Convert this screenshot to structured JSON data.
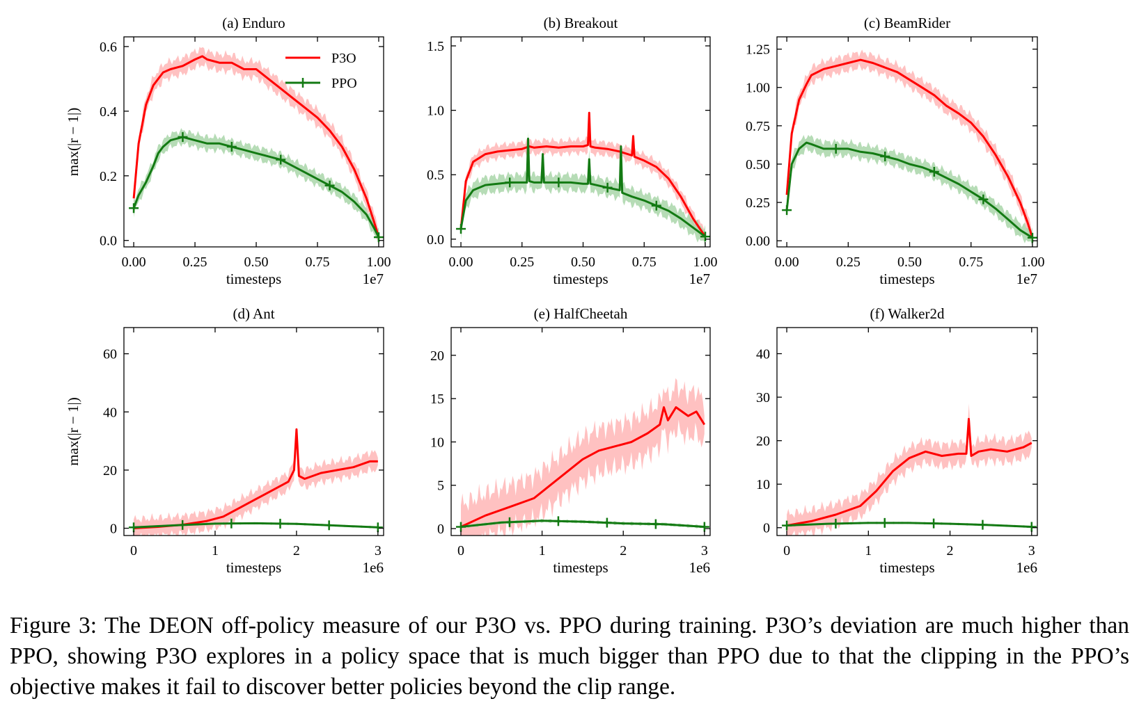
{
  "caption": "Figure 3: The DEON off-policy measure of our P3O vs. PPO during training. P3O’s deviation are much higher than PPO, showing P3O explores in a policy space that is much bigger than PPO due to that the clipping in the PPO’s objective makes it fail to discover better policies beyond the clip range.",
  "colors": {
    "p3o": "#ff0000",
    "p3o_band": "#ffb6b6",
    "ppo": "#137a13",
    "ppo_band": "#a9d6a9"
  },
  "chart_data": [
    {
      "type": "line",
      "title": "(a) Enduro",
      "xlabel": "timesteps",
      "ylabel": "max(|r − 1|)",
      "x_offset_label": "1e7",
      "xlim": [
        -0.04,
        1.02
      ],
      "ylim": [
        -0.02,
        0.63
      ],
      "xticks": [
        0,
        0.25,
        0.5,
        0.75,
        1.0
      ],
      "xtick_labels": [
        "0.00",
        "0.25",
        "0.50",
        "0.75",
        "1.00"
      ],
      "yticks": [
        0,
        0.2,
        0.4,
        0.6
      ],
      "ytick_labels": [
        "0.0",
        "0.2",
        "0.4",
        "0.6"
      ],
      "legend": {
        "position": "top-right",
        "entries": [
          "P3O",
          "PPO"
        ]
      },
      "series": [
        {
          "name": "P3O",
          "x": [
            0,
            0.02,
            0.05,
            0.08,
            0.12,
            0.15,
            0.2,
            0.25,
            0.28,
            0.3,
            0.35,
            0.4,
            0.45,
            0.5,
            0.55,
            0.6,
            0.65,
            0.7,
            0.75,
            0.8,
            0.85,
            0.9,
            0.95,
            0.98,
            1.0
          ],
          "y": [
            0.13,
            0.3,
            0.42,
            0.48,
            0.52,
            0.53,
            0.54,
            0.56,
            0.57,
            0.56,
            0.55,
            0.55,
            0.53,
            0.53,
            0.5,
            0.47,
            0.44,
            0.41,
            0.38,
            0.34,
            0.29,
            0.22,
            0.13,
            0.06,
            0.01
          ],
          "band": 0.025
        },
        {
          "name": "PPO",
          "x": [
            0,
            0.02,
            0.05,
            0.08,
            0.1,
            0.12,
            0.15,
            0.2,
            0.25,
            0.3,
            0.35,
            0.4,
            0.45,
            0.5,
            0.55,
            0.6,
            0.65,
            0.7,
            0.75,
            0.8,
            0.85,
            0.9,
            0.95,
            0.98,
            1.0
          ],
          "y": [
            0.1,
            0.14,
            0.18,
            0.23,
            0.27,
            0.29,
            0.31,
            0.32,
            0.31,
            0.3,
            0.3,
            0.29,
            0.28,
            0.27,
            0.26,
            0.25,
            0.23,
            0.21,
            0.19,
            0.17,
            0.15,
            0.12,
            0.08,
            0.04,
            0.01
          ],
          "band": 0.02,
          "markers_at": [
            0,
            0.2,
            0.4,
            0.6,
            0.8,
            1.0
          ]
        }
      ]
    },
    {
      "type": "line",
      "title": "(b) Breakout",
      "xlabel": "timesteps",
      "ylabel": "",
      "x_offset_label": "1e7",
      "xlim": [
        -0.04,
        1.02
      ],
      "ylim": [
        -0.06,
        1.57
      ],
      "xticks": [
        0,
        0.25,
        0.5,
        0.75,
        1.0
      ],
      "xtick_labels": [
        "0.00",
        "0.25",
        "0.50",
        "0.75",
        "1.00"
      ],
      "yticks": [
        0,
        0.5,
        1.0,
        1.5
      ],
      "ytick_labels": [
        "0.0",
        "0.5",
        "1.0",
        "1.5"
      ],
      "series": [
        {
          "name": "P3O",
          "x": [
            0,
            0.02,
            0.05,
            0.1,
            0.15,
            0.2,
            0.25,
            0.28,
            0.3,
            0.35,
            0.4,
            0.45,
            0.5,
            0.52,
            0.525,
            0.53,
            0.55,
            0.6,
            0.65,
            0.7,
            0.705,
            0.71,
            0.75,
            0.8,
            0.85,
            0.9,
            0.95,
            1.0
          ],
          "y": [
            0.08,
            0.45,
            0.6,
            0.66,
            0.68,
            0.69,
            0.7,
            0.72,
            0.71,
            0.72,
            0.71,
            0.72,
            0.72,
            0.73,
            0.98,
            0.72,
            0.71,
            0.7,
            0.68,
            0.65,
            0.8,
            0.64,
            0.61,
            0.56,
            0.47,
            0.33,
            0.16,
            0.02
          ],
          "band": 0.05
        },
        {
          "name": "PPO",
          "x": [
            0,
            0.02,
            0.05,
            0.1,
            0.15,
            0.2,
            0.27,
            0.275,
            0.28,
            0.3,
            0.33,
            0.335,
            0.34,
            0.4,
            0.45,
            0.5,
            0.52,
            0.525,
            0.53,
            0.6,
            0.65,
            0.655,
            0.66,
            0.7,
            0.75,
            0.8,
            0.85,
            0.9,
            0.95,
            1.0
          ],
          "y": [
            0.08,
            0.3,
            0.38,
            0.42,
            0.43,
            0.44,
            0.44,
            0.78,
            0.45,
            0.44,
            0.44,
            0.66,
            0.44,
            0.44,
            0.44,
            0.43,
            0.43,
            0.62,
            0.43,
            0.4,
            0.38,
            0.72,
            0.36,
            0.33,
            0.3,
            0.26,
            0.22,
            0.16,
            0.09,
            0.02
          ],
          "band": 0.06,
          "markers_at": [
            0,
            0.2,
            0.4,
            0.6,
            0.8,
            1.0
          ]
        }
      ]
    },
    {
      "type": "line",
      "title": "(c) BeamRider",
      "xlabel": "timesteps",
      "ylabel": "",
      "x_offset_label": "1e7",
      "xlim": [
        -0.04,
        1.02
      ],
      "ylim": [
        -0.04,
        1.33
      ],
      "xticks": [
        0,
        0.25,
        0.5,
        0.75,
        1.0
      ],
      "xtick_labels": [
        "0.00",
        "0.25",
        "0.50",
        "0.75",
        "1.00"
      ],
      "yticks": [
        0,
        0.25,
        0.5,
        0.75,
        1.0,
        1.25
      ],
      "ytick_labels": [
        "0.00",
        "0.25",
        "0.50",
        "0.75",
        "1.00",
        "1.25"
      ],
      "series": [
        {
          "name": "P3O",
          "x": [
            0,
            0.02,
            0.05,
            0.08,
            0.1,
            0.15,
            0.2,
            0.25,
            0.3,
            0.35,
            0.4,
            0.45,
            0.5,
            0.55,
            0.6,
            0.65,
            0.7,
            0.75,
            0.8,
            0.85,
            0.9,
            0.95,
            0.98,
            1.0
          ],
          "y": [
            0.3,
            0.7,
            0.92,
            1.02,
            1.08,
            1.12,
            1.14,
            1.16,
            1.18,
            1.16,
            1.13,
            1.1,
            1.05,
            1.0,
            0.95,
            0.88,
            0.83,
            0.77,
            0.68,
            0.56,
            0.42,
            0.25,
            0.12,
            0.02
          ],
          "band": 0.05
        },
        {
          "name": "PPO",
          "x": [
            0,
            0.02,
            0.05,
            0.08,
            0.1,
            0.15,
            0.2,
            0.25,
            0.3,
            0.35,
            0.4,
            0.45,
            0.5,
            0.55,
            0.6,
            0.65,
            0.7,
            0.75,
            0.8,
            0.85,
            0.9,
            0.95,
            1.0
          ],
          "y": [
            0.2,
            0.5,
            0.6,
            0.64,
            0.63,
            0.6,
            0.6,
            0.6,
            0.58,
            0.57,
            0.55,
            0.53,
            0.5,
            0.48,
            0.45,
            0.41,
            0.37,
            0.32,
            0.27,
            0.21,
            0.14,
            0.07,
            0.02
          ],
          "band": 0.045,
          "markers_at": [
            0,
            0.2,
            0.4,
            0.6,
            0.8,
            1.0
          ]
        }
      ]
    },
    {
      "type": "line",
      "title": "(d) Ant",
      "xlabel": "timesteps",
      "ylabel": "max(|r − 1|)",
      "x_offset_label": "1e6",
      "xlim": [
        -0.12,
        3.07
      ],
      "ylim": [
        -2.5,
        69
      ],
      "xticks": [
        0,
        1,
        2,
        3
      ],
      "xtick_labels": [
        "0",
        "1",
        "2",
        "3"
      ],
      "yticks": [
        0,
        20,
        40,
        60
      ],
      "ytick_labels": [
        "0",
        "20",
        "40",
        "60"
      ],
      "series": [
        {
          "name": "P3O",
          "x": [
            0,
            0.3,
            0.6,
            0.9,
            1.1,
            1.3,
            1.5,
            1.7,
            1.9,
            1.97,
            2.0,
            2.03,
            2.1,
            2.3,
            2.5,
            2.7,
            2.9,
            3.0
          ],
          "y": [
            0,
            0.5,
            1.2,
            2.5,
            4,
            7,
            10,
            13,
            16,
            20,
            34,
            18,
            17,
            19,
            20,
            21,
            23,
            23
          ],
          "band": 3
        },
        {
          "name": "PPO",
          "x": [
            0,
            0.5,
            1.0,
            1.5,
            2.0,
            2.5,
            3.0
          ],
          "y": [
            0.3,
            1,
            1.6,
            1.7,
            1.5,
            0.9,
            0.3
          ],
          "band": 0.3,
          "markers_at": [
            0,
            0.6,
            1.2,
            1.8,
            2.4,
            3.0
          ]
        }
      ]
    },
    {
      "type": "line",
      "title": "(e) HalfCheetah",
      "xlabel": "timesteps",
      "ylabel": "",
      "x_offset_label": "1e6",
      "xlim": [
        -0.12,
        3.07
      ],
      "ylim": [
        -0.8,
        23.2
      ],
      "xticks": [
        0,
        1,
        2,
        3
      ],
      "xtick_labels": [
        "0",
        "1",
        "2",
        "3"
      ],
      "yticks": [
        0,
        5,
        10,
        15,
        20
      ],
      "ytick_labels": [
        "0",
        "5",
        "10",
        "15",
        "20"
      ],
      "series": [
        {
          "name": "P3O",
          "x": [
            0,
            0.3,
            0.6,
            0.9,
            1.1,
            1.3,
            1.5,
            1.7,
            1.9,
            2.1,
            2.3,
            2.45,
            2.5,
            2.55,
            2.65,
            2.8,
            2.9,
            3.0
          ],
          "y": [
            0.2,
            1.5,
            2.5,
            3.5,
            5,
            6.5,
            8,
            9,
            9.5,
            10,
            11,
            12,
            14,
            12.5,
            14,
            13,
            13.5,
            12
          ],
          "band": 2.5
        },
        {
          "name": "PPO",
          "x": [
            0,
            0.5,
            1.0,
            1.5,
            2.0,
            2.5,
            3.0
          ],
          "y": [
            0.2,
            0.7,
            0.9,
            0.8,
            0.6,
            0.5,
            0.2
          ],
          "band": 0.15,
          "markers_at": [
            0,
            0.6,
            1.2,
            1.8,
            2.4,
            3.0
          ]
        }
      ]
    },
    {
      "type": "line",
      "title": "(f) Walker2d",
      "xlabel": "timesteps",
      "ylabel": "",
      "x_offset_label": "1e6",
      "xlim": [
        -0.12,
        3.07
      ],
      "ylim": [
        -1.8,
        46
      ],
      "xticks": [
        0,
        1,
        2,
        3
      ],
      "xtick_labels": [
        "0",
        "1",
        "2",
        "3"
      ],
      "yticks": [
        0,
        10,
        20,
        30,
        40
      ],
      "ytick_labels": [
        "0",
        "10",
        "20",
        "30",
        "40"
      ],
      "series": [
        {
          "name": "P3O",
          "x": [
            0,
            0.3,
            0.6,
            0.9,
            1.1,
            1.3,
            1.5,
            1.7,
            1.9,
            2.1,
            2.2,
            2.23,
            2.26,
            2.35,
            2.5,
            2.7,
            2.9,
            3.0
          ],
          "y": [
            0.5,
            1.5,
            3,
            5,
            8.5,
            13,
            16,
            17.5,
            16.5,
            17,
            17,
            25,
            16.5,
            17.5,
            18,
            17.5,
            18.5,
            19.5
          ],
          "band": 2.5
        },
        {
          "name": "PPO",
          "x": [
            0,
            0.5,
            1.0,
            1.5,
            2.0,
            2.5,
            3.0
          ],
          "y": [
            0.5,
            0.9,
            1.1,
            1.1,
            0.9,
            0.6,
            0.2
          ],
          "band": 0.2,
          "markers_at": [
            0,
            0.6,
            1.2,
            1.8,
            2.4,
            3.0
          ]
        }
      ]
    }
  ]
}
